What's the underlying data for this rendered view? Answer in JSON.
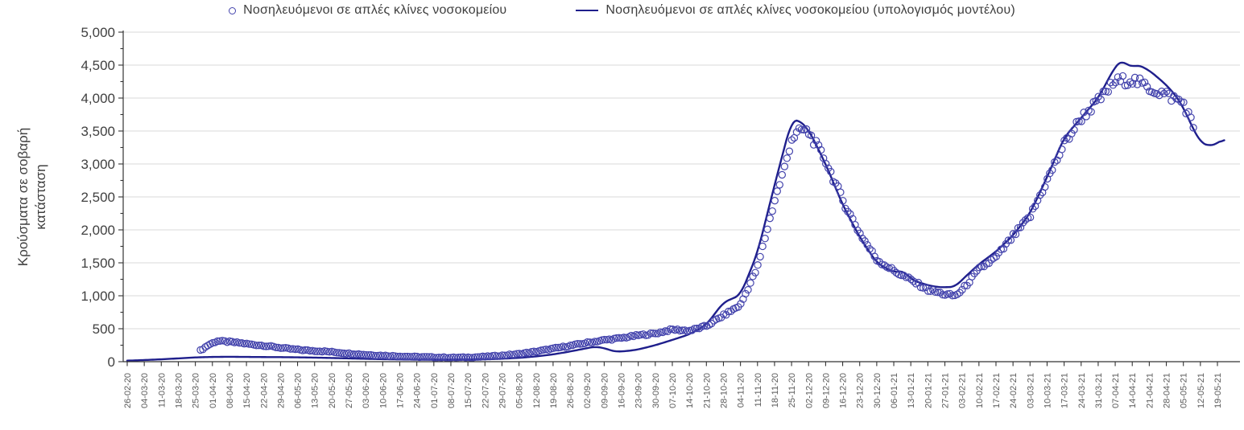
{
  "chart_data": {
    "type": "line",
    "title": "",
    "xlabel": "",
    "ylabel": "Κρούσματα σε σοβαρή κατάσταση",
    "ylabel_lines": [
      "Κρούσματα σε σοβαρή",
      "κατάσταση"
    ],
    "ylim": [
      0,
      5000
    ],
    "ytick_step": 500,
    "ytick_minor_step": 250,
    "ytick_labels": [
      "0",
      "500",
      "1,000",
      "1,500",
      "2,000",
      "2,500",
      "3,000",
      "3,500",
      "4,000",
      "4,500",
      "5,000"
    ],
    "grid": "horizontal",
    "legend_position": "top-center",
    "x_tick_labels_rotated": true,
    "categories": [
      "26-02-20",
      "04-03-20",
      "11-03-20",
      "18-03-20",
      "25-03-20",
      "01-04-20",
      "08-04-20",
      "15-04-20",
      "22-04-20",
      "29-04-20",
      "06-05-20",
      "13-05-20",
      "20-05-20",
      "27-05-20",
      "03-06-20",
      "10-06-20",
      "17-06-20",
      "24-06-20",
      "01-07-20",
      "08-07-20",
      "15-07-20",
      "22-07-20",
      "29-07-20",
      "05-08-20",
      "12-08-20",
      "19-08-20",
      "26-08-20",
      "02-09-20",
      "09-09-20",
      "16-09-20",
      "23-09-20",
      "30-09-20",
      "07-10-20",
      "14-10-20",
      "21-10-20",
      "28-10-20",
      "04-11-20",
      "11-11-20",
      "18-11-20",
      "25-11-20",
      "02-12-20",
      "09-12-20",
      "16-12-20",
      "23-12-20",
      "30-12-20",
      "06-01-21",
      "13-01-21",
      "20-01-21",
      "27-01-21",
      "03-02-21",
      "10-02-21",
      "17-02-21",
      "24-02-21",
      "03-03-21",
      "10-03-21",
      "17-03-21",
      "24-03-21",
      "31-03-21",
      "07-04-21",
      "14-04-21",
      "21-04-21",
      "28-04-21",
      "05-05-21",
      "12-05-21",
      "19-05-21"
    ],
    "series": [
      {
        "name": "Νοσηλευόμενοι σε απλές κλίνες νοσοκομείου",
        "type": "scatter",
        "marker": "open-circle",
        "color": "#4343ac",
        "resolution": "daily",
        "points_weekly": [
          [
            5.3,
            170
          ],
          [
            5.8,
            260
          ],
          [
            6.3,
            315
          ],
          [
            7,
            300
          ],
          [
            7.6,
            285
          ],
          [
            8.4,
            258
          ],
          [
            9,
            245
          ],
          [
            9.6,
            225
          ],
          [
            10.5,
            195
          ],
          [
            11.5,
            172
          ],
          [
            12.5,
            158
          ],
          [
            13,
            148
          ],
          [
            14,
            126
          ],
          [
            15,
            106
          ],
          [
            16,
            93
          ],
          [
            17,
            83
          ],
          [
            18,
            74
          ],
          [
            19,
            67
          ],
          [
            20,
            62
          ],
          [
            21,
            65
          ],
          [
            22,
            76
          ],
          [
            23,
            95
          ],
          [
            24,
            118
          ],
          [
            25,
            155
          ],
          [
            26,
            198
          ],
          [
            27,
            243
          ],
          [
            28,
            288
          ],
          [
            29,
            328
          ],
          [
            30,
            358
          ],
          [
            31,
            400
          ],
          [
            32,
            428
          ],
          [
            33,
            488
          ],
          [
            34,
            470
          ],
          [
            35,
            540
          ],
          [
            36,
            700
          ],
          [
            37,
            860
          ],
          [
            38,
            1430
          ],
          [
            39,
            2440
          ],
          [
            39.6,
            2950
          ],
          [
            40,
            3380
          ],
          [
            40.6,
            3520
          ],
          [
            41,
            3480
          ],
          [
            42,
            3050
          ],
          [
            43,
            2450
          ],
          [
            44,
            1950
          ],
          [
            45,
            1550
          ],
          [
            46,
            1380
          ],
          [
            47,
            1240
          ],
          [
            48,
            1090
          ],
          [
            49,
            1020
          ],
          [
            49.6,
            1000
          ],
          [
            50,
            1080
          ],
          [
            51,
            1400
          ],
          [
            52,
            1580
          ],
          [
            53,
            1900
          ],
          [
            54,
            2200
          ],
          [
            55,
            2750
          ],
          [
            56,
            3300
          ],
          [
            57,
            3700
          ],
          [
            58,
            3950
          ],
          [
            59,
            4250
          ],
          [
            60,
            4280
          ],
          [
            61,
            4150
          ],
          [
            62,
            4050
          ],
          [
            63,
            3930
          ],
          [
            63.3,
            3750
          ],
          [
            63.6,
            3550
          ]
        ]
      },
      {
        "name": "Νοσηλευόμενοι σε απλές κλίνες νοσοκομείου (υπολογισμός μοντέλου)",
        "type": "line",
        "color": "#1f1f8c",
        "points_weekly": [
          [
            1,
            15
          ],
          [
            2,
            25
          ],
          [
            3,
            36
          ],
          [
            4,
            50
          ],
          [
            5,
            65
          ],
          [
            6,
            72
          ],
          [
            7,
            74
          ],
          [
            8,
            72
          ],
          [
            9,
            70
          ],
          [
            10,
            69
          ],
          [
            11,
            66
          ],
          [
            12,
            62
          ],
          [
            13,
            56
          ],
          [
            14,
            50
          ],
          [
            15,
            44
          ],
          [
            16,
            38
          ],
          [
            17,
            34
          ],
          [
            18,
            31
          ],
          [
            19,
            30
          ],
          [
            20,
            30
          ],
          [
            21,
            32
          ],
          [
            22,
            36
          ],
          [
            23,
            45
          ],
          [
            24,
            58
          ],
          [
            25,
            80
          ],
          [
            26,
            110
          ],
          [
            27,
            155
          ],
          [
            28,
            205
          ],
          [
            28.4,
            228
          ],
          [
            29,
            208
          ],
          [
            29.6,
            152
          ],
          [
            30.3,
            160
          ],
          [
            31,
            185
          ],
          [
            32,
            250
          ],
          [
            33,
            330
          ],
          [
            34,
            415
          ],
          [
            35,
            560
          ],
          [
            36,
            900
          ],
          [
            37,
            1010
          ],
          [
            38,
            1650
          ],
          [
            39,
            2680
          ],
          [
            40,
            3660
          ],
          [
            40.4,
            3675
          ],
          [
            41,
            3520
          ],
          [
            42,
            3000
          ],
          [
            43,
            2380
          ],
          [
            44,
            1890
          ],
          [
            45,
            1500
          ],
          [
            46,
            1350
          ],
          [
            46.6,
            1385
          ],
          [
            47,
            1245
          ],
          [
            48,
            1160
          ],
          [
            48.6,
            1130
          ],
          [
            49,
            1130
          ],
          [
            49.6,
            1135
          ],
          [
            50,
            1240
          ],
          [
            51,
            1480
          ],
          [
            52,
            1670
          ],
          [
            53,
            1915
          ],
          [
            54,
            2250
          ],
          [
            55,
            2800
          ],
          [
            56,
            3400
          ],
          [
            57,
            3700
          ],
          [
            58,
            4000
          ],
          [
            59,
            4480
          ],
          [
            59.4,
            4580
          ],
          [
            59.9,
            4460
          ],
          [
            60.3,
            4510
          ],
          [
            61,
            4420
          ],
          [
            62,
            4200
          ],
          [
            62.7,
            3990
          ],
          [
            63,
            3850
          ],
          [
            63.7,
            3470
          ],
          [
            64,
            3330
          ],
          [
            64.5,
            3270
          ],
          [
            65,
            3310
          ],
          [
            65.4,
            3390
          ]
        ]
      }
    ],
    "colors": {
      "grid": "#d9d9d9",
      "axis": "#333333",
      "x_tick_label": "#595959",
      "y_tick_label": "#404040",
      "legend_text": "#3f3f3f"
    }
  }
}
